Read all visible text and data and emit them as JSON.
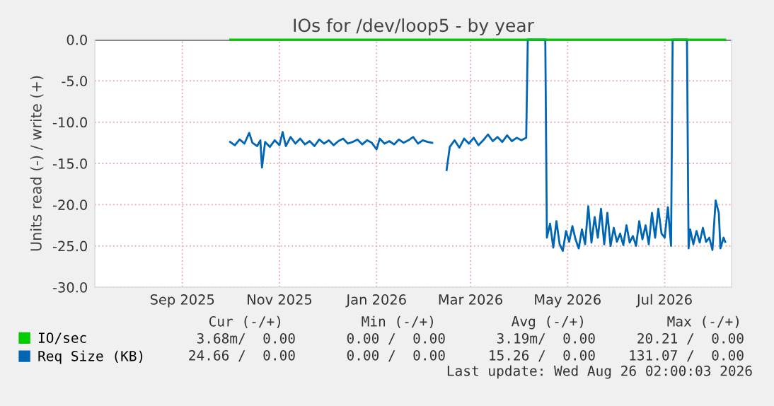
{
  "chart_data": {
    "type": "line",
    "title": "IOs for /dev/loop5 - by year",
    "ylabel": "Units read (-) / write (+)",
    "xlim": [
      "2025-07-22",
      "2026-08-26"
    ],
    "xticks": [
      {
        "value": "2025-09-15",
        "label": "Sep 2025"
      },
      {
        "value": "2025-11-15",
        "label": "Nov 2025"
      },
      {
        "value": "2026-01-15",
        "label": "Jan 2026"
      },
      {
        "value": "2026-03-15",
        "label": "Mar 2026"
      },
      {
        "value": "2026-05-15",
        "label": "May 2026"
      },
      {
        "value": "2026-07-15",
        "label": "Jul 2026"
      }
    ],
    "ylim": [
      -30,
      0
    ],
    "yticks": [
      {
        "value": 0,
        "label": "0.0"
      },
      {
        "value": -5,
        "label": "-5.0"
      },
      {
        "value": -10,
        "label": "-10.0"
      },
      {
        "value": -15,
        "label": "-15.0"
      },
      {
        "value": -20,
        "label": "-20.0"
      },
      {
        "value": -25,
        "label": "-25.0"
      },
      {
        "value": -30,
        "label": "-30.0"
      }
    ],
    "grid": true,
    "legend": "bottom",
    "marker": "none",
    "line_style": "solid",
    "ref_lines": [
      {
        "axis": "y",
        "value": 0,
        "color": "#000000"
      }
    ],
    "series": [
      {
        "name": "IO/sec",
        "color": "#00cc00",
        "x": [
          "2025-10-15",
          "2026-08-22"
        ],
        "values": [
          0,
          0
        ]
      },
      {
        "name": "Req Size (KB)",
        "color": "#0066b3",
        "x": [
          "2025-10-15",
          "2025-10-18",
          "2025-10-21",
          "2025-10-24",
          "2025-10-27",
          "2025-10-29",
          "2025-11-01",
          "2025-11-03",
          "2025-11-04",
          "2025-11-06",
          "2025-11-09",
          "2025-11-12",
          "2025-11-15",
          "2025-11-17",
          "2025-11-19",
          "2025-11-22",
          "2025-11-25",
          "2025-11-28",
          "2025-12-01",
          "2025-12-04",
          "2025-12-07",
          "2025-12-10",
          "2025-12-13",
          "2025-12-16",
          "2025-12-19",
          "2025-12-22",
          "2025-12-25",
          "2025-12-28",
          "2025-12-31",
          "2026-01-03",
          "2026-01-06",
          "2026-01-09",
          "2026-01-12",
          "2026-01-15",
          "2026-01-17",
          "2026-01-20",
          "2026-01-23",
          "2026-01-26",
          "2026-01-29",
          "2026-02-01",
          "2026-02-04",
          "2026-02-07",
          "2026-02-10",
          "2026-02-13",
          "2026-02-16",
          "2026-02-19",
          "2026-02-22",
          "2026-02-28",
          "2026-03-02",
          "2026-03-05",
          "2026-03-08",
          "2026-03-11",
          "2026-03-14",
          "2026-03-17",
          "2026-03-20",
          "2026-03-23",
          "2026-03-26",
          "2026-03-29",
          "2026-04-01",
          "2026-04-04",
          "2026-04-07",
          "2026-04-10",
          "2026-04-13",
          "2026-04-16",
          "2026-04-19",
          "2026-04-20",
          "2026-05-01",
          "2026-05-02",
          "2026-05-04",
          "2026-05-06",
          "2026-05-08",
          "2026-05-10",
          "2026-05-12",
          "2026-05-14",
          "2026-05-16",
          "2026-05-18",
          "2026-05-20",
          "2026-05-22",
          "2026-05-24",
          "2026-05-26",
          "2026-05-28",
          "2026-05-30",
          "2026-06-01",
          "2026-06-03",
          "2026-06-05",
          "2026-06-07",
          "2026-06-09",
          "2026-06-11",
          "2026-06-13",
          "2026-06-15",
          "2026-06-17",
          "2026-06-19",
          "2026-06-21",
          "2026-06-23",
          "2026-06-25",
          "2026-06-27",
          "2026-06-29",
          "2026-07-01",
          "2026-07-03",
          "2026-07-05",
          "2026-07-07",
          "2026-07-09",
          "2026-07-11",
          "2026-07-13",
          "2026-07-15",
          "2026-07-17",
          "2026-07-19",
          "2026-07-20",
          "2026-07-29",
          "2026-07-30",
          "2026-07-31",
          "2026-08-02",
          "2026-08-04",
          "2026-08-06",
          "2026-08-08",
          "2026-08-10",
          "2026-08-12",
          "2026-08-14",
          "2026-08-16",
          "2026-08-18",
          "2026-08-19",
          "2026-08-21",
          "2026-08-22"
        ],
        "values": [
          -12.4,
          -12.8,
          -12.1,
          -12.6,
          -11.3,
          -12.5,
          -12.9,
          -12.2,
          -15.5,
          -12.4,
          -13.0,
          -12.2,
          -12.8,
          -11.2,
          -12.9,
          -11.8,
          -12.6,
          -12.0,
          -12.7,
          -12.3,
          -12.9,
          -12.1,
          -12.6,
          -12.2,
          -12.8,
          -12.3,
          -12.0,
          -12.6,
          -12.4,
          -12.1,
          -12.7,
          -12.2,
          -12.5,
          -13.3,
          -12.0,
          -12.6,
          -12.3,
          -12.7,
          -12.1,
          -12.5,
          -12.2,
          -11.8,
          -12.6,
          -12.2,
          -12.4,
          -12.5,
          null,
          -15.8,
          -13.0,
          -12.2,
          -13.1,
          -12.0,
          -12.6,
          -11.9,
          -12.8,
          -12.2,
          -11.5,
          -12.3,
          -11.8,
          -12.4,
          -11.6,
          -12.3,
          -11.9,
          -12.2,
          -11.9,
          0,
          0,
          -24.0,
          -22.3,
          -25.2,
          -22.0,
          -24.8,
          -25.6,
          -23.2,
          -24.5,
          -22.6,
          -24.2,
          -25.3,
          -23.0,
          -24.8,
          -20.2,
          -24.6,
          -21.5,
          -24.0,
          -20.5,
          -24.8,
          -21.0,
          -25.0,
          -22.8,
          -24.5,
          -23.5,
          -24.9,
          -22.5,
          -24.6,
          -23.8,
          -25.0,
          -22.0,
          -24.2,
          -22.5,
          -24.8,
          -21.0,
          -24.0,
          -20.5,
          -23.5,
          -24.0,
          -20.3,
          -25.0,
          0,
          0,
          -25.3,
          -23.0,
          -24.8,
          -23.2,
          -24.6,
          -22.8,
          -24.5,
          -24.0,
          -25.5,
          -19.5,
          -21.0,
          -25.3,
          -24.0,
          -24.5
        ]
      }
    ],
    "annotations": [
      "Cur (-/+)",
      "Min (-/+)",
      "Avg (-/+)",
      "Max (-/+)",
      "3.68m/  0.00",
      "0.00 /  0.00",
      "3.19m/  0.00",
      "20.21 /  0.00",
      "24.66 /  0.00",
      "0.00 /  0.00",
      "15.26 /  0.00",
      "131.07 /  0.00",
      "Last update: Wed Aug 26 02:00:03 2026"
    ]
  }
}
